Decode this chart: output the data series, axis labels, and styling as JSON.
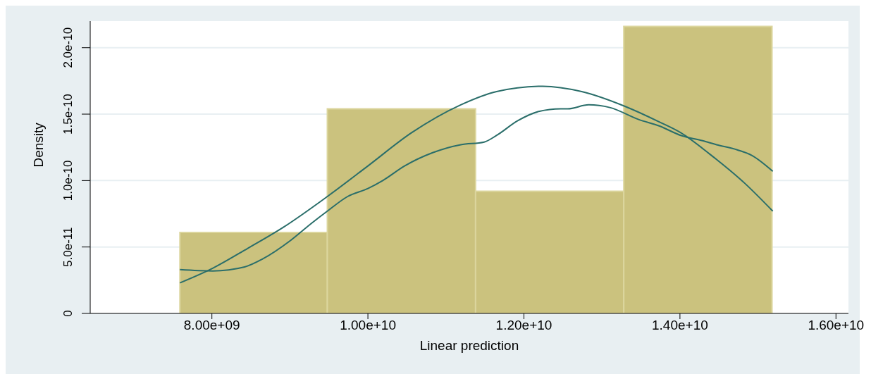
{
  "chart_data": {
    "type": "histogram",
    "xlabel": "Linear prediction",
    "ylabel": "Density",
    "bins": [
      7590000000.0,
      9480000000.0,
      11380000000.0,
      13280000000.0,
      15180000000.0
    ],
    "values": [
      6.1e-11,
      1.54e-10,
      9.2e-11,
      2.16e-10
    ],
    "color": "#cbc27e",
    "series": [
      {
        "type": "line",
        "color": "#2a6e6a",
        "x": [
          7590000000.0,
          8010000000.0,
          8460000000.0,
          8920000000.0,
          9480000000.0,
          10000000000.0,
          10560000000.0,
          11190000000.0,
          11650000000.0,
          12240000000.0,
          12740000000.0,
          13290000000.0,
          13740000000.0,
          14010000000.0,
          14380000000.0,
          14830000000.0,
          15190000000.0
        ],
        "values": [
          2.3e-11,
          3.4e-11,
          4.9e-11,
          6.5e-11,
          8.8e-11,
          1.11e-10,
          1.36e-10,
          1.57e-10,
          1.67e-10,
          1.71e-10,
          1.67e-10,
          1.56e-10,
          1.44e-10,
          1.36e-10,
          1.2e-10,
          9.8e-11,
          7.7e-11
        ]
      },
      {
        "type": "line",
        "color": "#2a6e6a",
        "x": [
          7590000000.0,
          8010000000.0,
          8420000000.0,
          8650000000.0,
          9010000000.0,
          9280000000.0,
          9480000000.0,
          9740000000.0,
          10000000000.0,
          10190000000.0,
          10470000000.0,
          10830000000.0,
          11190000000.0,
          11490000000.0,
          11650000000.0,
          11920000000.0,
          12190000000.0,
          12470000000.0,
          12560000000.0,
          12830000000.0,
          13100000000.0,
          13470000000.0,
          13740000000.0,
          14010000000.0,
          14290000000.0,
          14470000000.0,
          14740000000.0,
          14920000000.0,
          15190000000.0
        ],
        "values": [
          3.3e-11,
          3.2e-11,
          3.5e-11,
          4.1e-11,
          5.5e-11,
          6.8e-11,
          7.7e-11,
          8.8e-11,
          9.4e-11,
          1e-10,
          1.11e-10,
          1.21e-10,
          1.27e-10,
          1.29e-10,
          1.34e-10,
          1.45e-10,
          1.52e-10,
          1.54e-10,
          1.54e-10,
          1.57e-10,
          1.55e-10,
          1.46e-10,
          1.41e-10,
          1.34e-10,
          1.3e-10,
          1.27e-10,
          1.23e-10,
          1.19e-10,
          1.07e-10
        ]
      }
    ],
    "xlim": [
      6440000000.0,
      16160000000.0
    ],
    "xticks": [
      {
        "value": 8000000000.0,
        "label": "8.00e+09"
      },
      {
        "value": 10000000000.0,
        "label": "1.00e+10"
      },
      {
        "value": 12000000000.0,
        "label": "1.20e+10"
      },
      {
        "value": 14000000000.0,
        "label": "1.40e+10"
      },
      {
        "value": 16000000000.0,
        "label": "1.60e+10"
      }
    ],
    "ylim": [
      0,
      2.2e-10
    ],
    "yticks": [
      0,
      {
        "value": 5e-11,
        "label": "5.0e-11"
      },
      {
        "value": 1e-10,
        "label": "1.0e-10"
      },
      {
        "value": 1.5e-10,
        "label": "1.5e-10"
      },
      {
        "value": 2e-10,
        "label": "2.0e-10"
      }
    ],
    "grid": "y"
  }
}
